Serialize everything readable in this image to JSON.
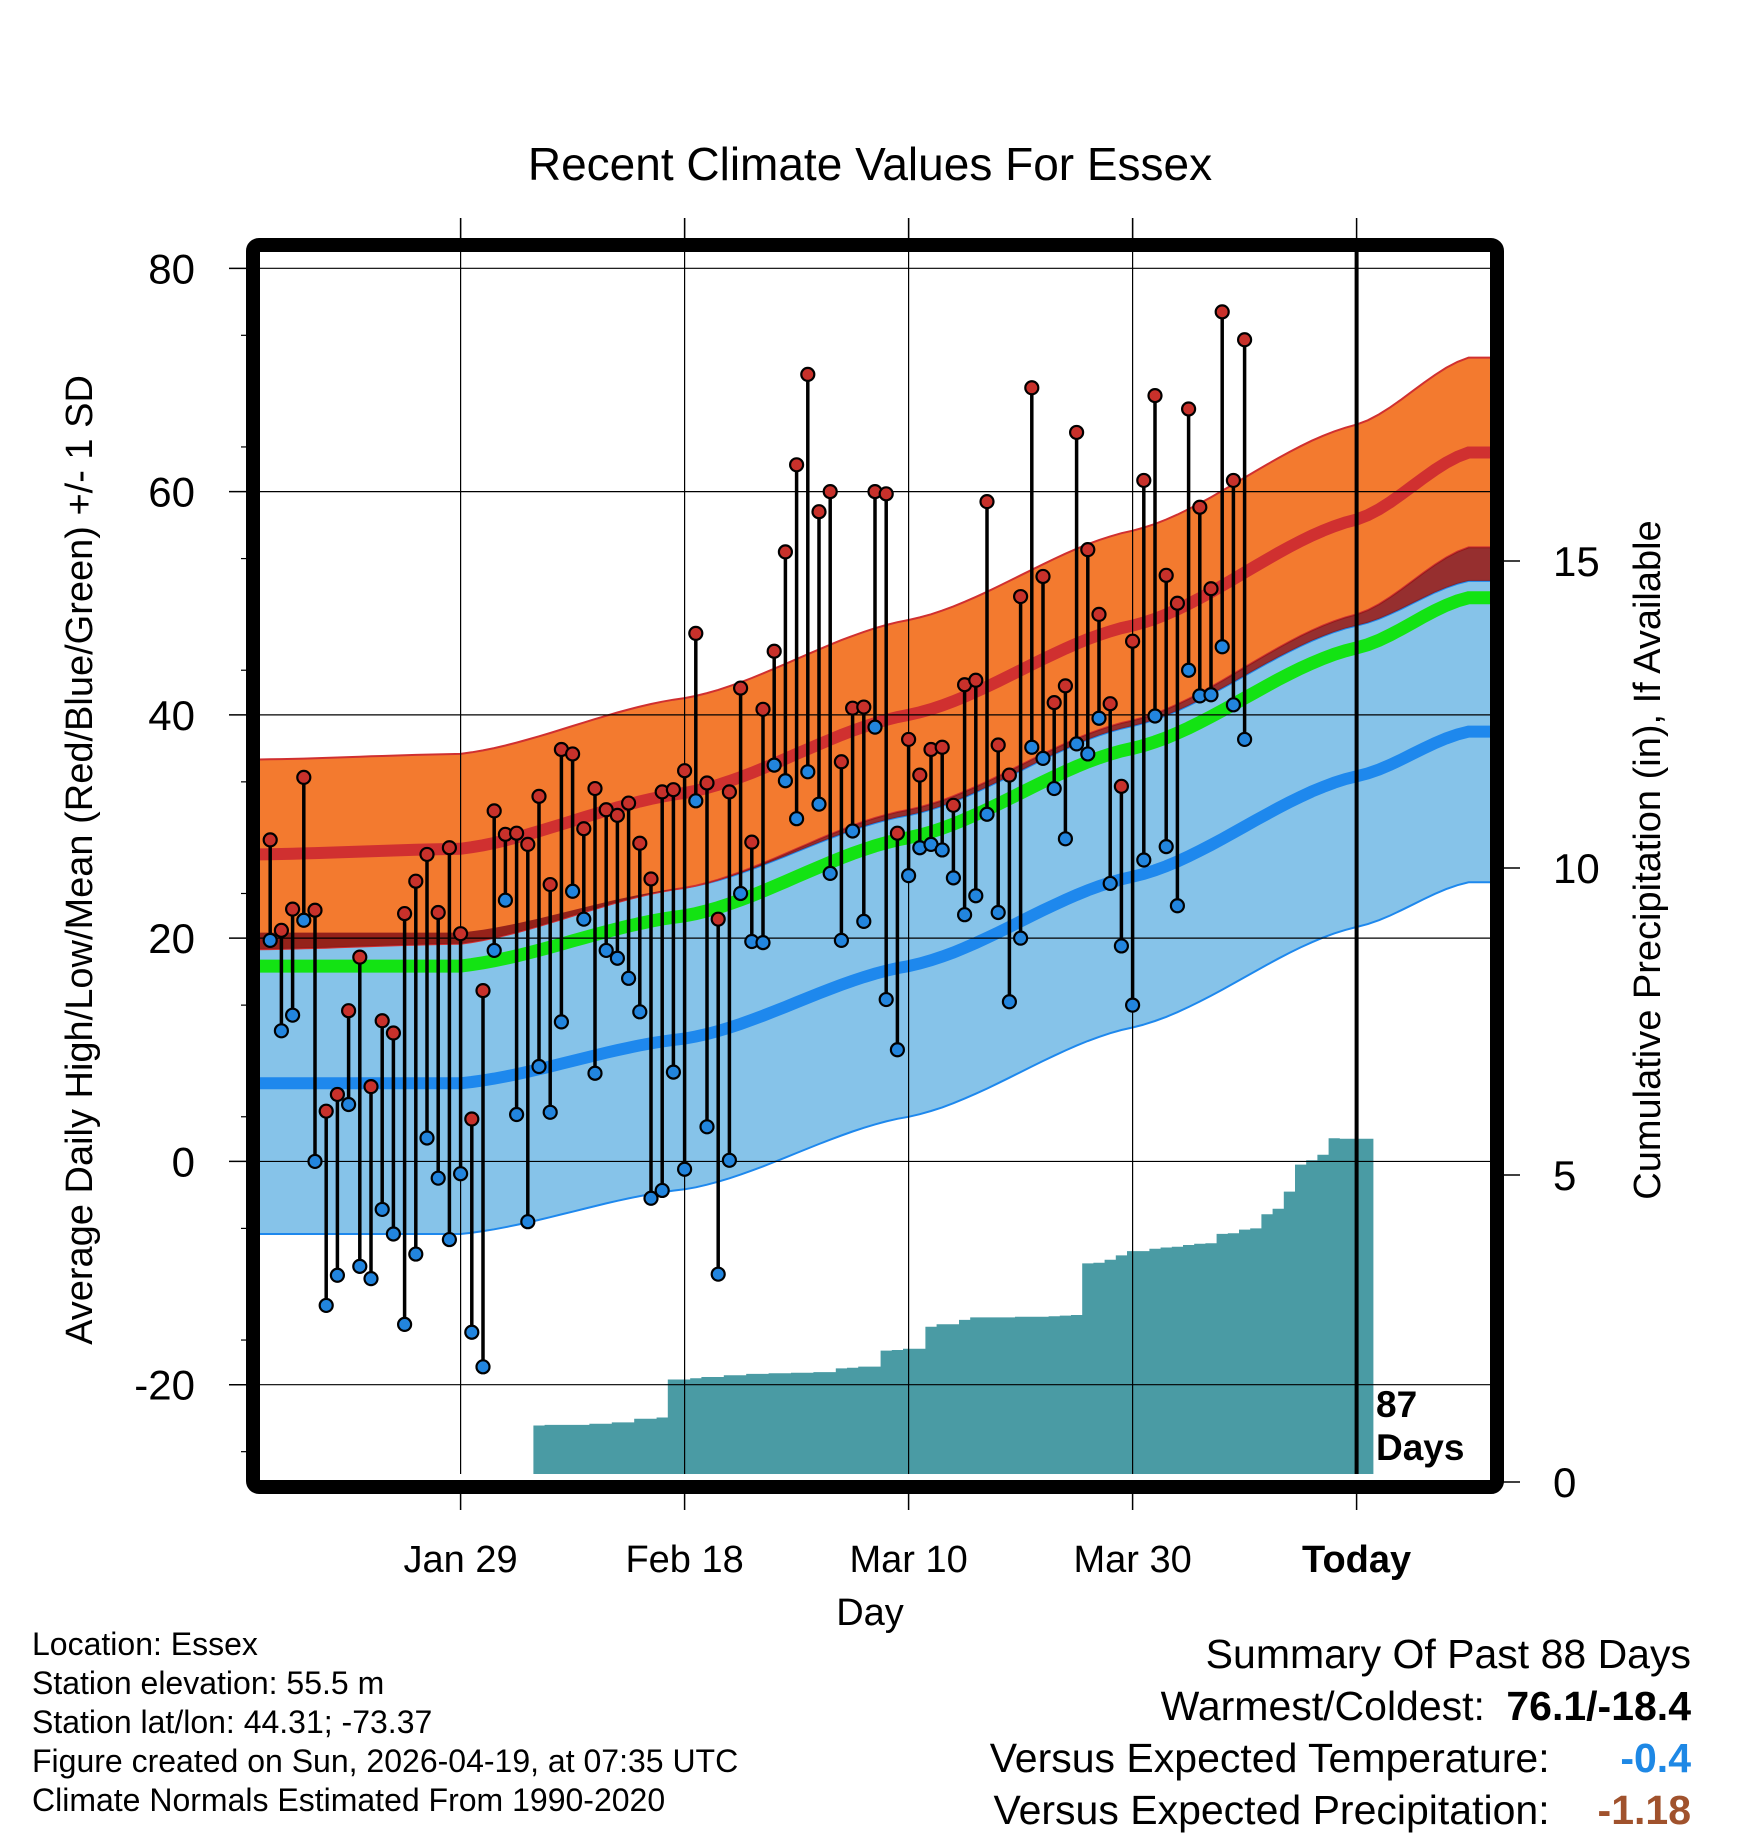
{
  "chart_data": {
    "type": "line",
    "title": "Recent Climate Values For Essex",
    "xlabel": "Day",
    "ylabel": "Average Daily High/Low/Mean (Red/Blue/Green) +/- 1 SD",
    "y2label": "Cumulative Precipitation (in), If Available",
    "x_range_days": [
      -98,
      12
    ],
    "ylim": [
      -28,
      82
    ],
    "y2lim": [
      0,
      20
    ],
    "yticks": [
      -20,
      0,
      20,
      40,
      60,
      80
    ],
    "y2ticks": [
      0,
      5,
      10,
      15
    ],
    "xticks": [
      {
        "day": -80,
        "label": "Jan 29"
      },
      {
        "day": -60,
        "label": "Feb 18"
      },
      {
        "day": -40,
        "label": "Mar 10"
      },
      {
        "day": -20,
        "label": "Mar 30"
      },
      {
        "day": 0,
        "label": "Today"
      }
    ],
    "today_annotation": [
      "87",
      "Days"
    ],
    "normal_high": [
      {
        "d": -98,
        "v": 27.5
      },
      {
        "d": -80,
        "v": 28
      },
      {
        "d": -60,
        "v": 33
      },
      {
        "d": -40,
        "v": 40
      },
      {
        "d": -20,
        "v": 48
      },
      {
        "d": 0,
        "v": 57.5
      },
      {
        "d": 10,
        "v": 63.5
      }
    ],
    "normal_high_sd": 8.5,
    "normal_low": [
      {
        "d": -98,
        "v": 7
      },
      {
        "d": -80,
        "v": 7
      },
      {
        "d": -60,
        "v": 11
      },
      {
        "d": -40,
        "v": 17.5
      },
      {
        "d": -20,
        "v": 25.5
      },
      {
        "d": 0,
        "v": 34.5
      },
      {
        "d": 10,
        "v": 38.5
      }
    ],
    "normal_low_sd": 13.5,
    "normal_mean": [
      {
        "d": -98,
        "v": 17.5
      },
      {
        "d": -80,
        "v": 17.5
      },
      {
        "d": -60,
        "v": 22
      },
      {
        "d": -40,
        "v": 29
      },
      {
        "d": -20,
        "v": 37
      },
      {
        "d": 0,
        "v": 46
      },
      {
        "d": 10,
        "v": 50.5
      }
    ],
    "daily_highs": [
      28.8,
      20.7,
      22.6,
      34.4,
      22.5,
      4.5,
      6.0,
      13.5,
      18.3,
      6.7,
      12.6,
      11.5,
      22.2,
      25.1,
      27.5,
      22.3,
      28.1,
      20.4,
      3.8,
      15.3,
      31.4,
      29.3,
      29.4,
      28.4,
      32.7,
      24.8,
      36.9,
      36.5,
      29.8,
      33.4,
      31.5,
      31.0,
      32.1,
      28.5,
      25.3,
      33.1,
      33.3,
      35.0,
      47.3,
      33.9,
      21.7,
      33.1,
      42.4,
      28.6,
      40.5,
      45.7,
      54.6,
      62.4,
      70.5,
      58.2,
      60.0,
      35.8,
      40.6,
      40.7,
      60.0,
      59.8,
      29.4,
      37.8,
      34.6,
      36.9,
      37.1,
      31.9,
      42.7,
      43.1,
      59.1,
      37.3,
      34.6,
      50.6,
      69.3,
      52.4,
      41.1,
      42.6,
      65.3,
      54.8,
      49.0,
      41.0,
      33.6,
      46.6,
      61.0,
      68.6,
      52.5,
      50.0,
      67.4,
      58.6,
      51.3,
      76.1,
      61.0,
      73.6
    ],
    "daily_lows": [
      19.8,
      11.7,
      13.1,
      21.6,
      0.0,
      -12.9,
      -10.2,
      5.1,
      -9.4,
      -10.5,
      -4.3,
      -6.5,
      -14.6,
      -8.3,
      2.1,
      -1.5,
      -7.0,
      -1.1,
      -15.3,
      -18.4,
      18.9,
      23.4,
      4.2,
      -5.4,
      8.5,
      4.4,
      12.5,
      24.2,
      21.7,
      7.9,
      18.9,
      18.2,
      16.4,
      13.4,
      -3.3,
      -2.6,
      8.0,
      -0.7,
      32.3,
      3.1,
      -10.1,
      0.1,
      24.0,
      19.7,
      19.6,
      35.5,
      34.1,
      30.7,
      34.9,
      32.0,
      25.8,
      19.8,
      29.6,
      21.5,
      38.9,
      14.5,
      10.0,
      25.6,
      28.1,
      28.4,
      27.9,
      25.4,
      22.1,
      23.8,
      31.1,
      22.3,
      14.3,
      20.0,
      37.1,
      36.1,
      33.4,
      28.9,
      37.4,
      36.5,
      39.7,
      24.9,
      19.3,
      14.0,
      27.0,
      39.9,
      28.2,
      22.9,
      44.0,
      41.7,
      41.8,
      46.1,
      40.9,
      37.8
    ],
    "cumulative_precip": [
      0,
      0,
      0,
      0,
      0,
      0,
      0.02,
      0.02,
      0.02,
      0.02,
      0.02,
      0.02,
      0.02,
      0.02,
      0.02,
      0.02,
      0.02,
      0.02,
      0.02,
      0.05,
      0.05,
      0.08,
      0.08,
      0.08,
      0.92,
      0.93,
      0.93,
      0.93,
      0.93,
      0.95,
      0.95,
      0.97,
      0.97,
      1.03,
      1.03,
      1.05,
      1.67,
      1.67,
      1.69,
      1.71,
      1.71,
      1.74,
      1.74,
      1.76,
      1.76,
      1.77,
      1.77,
      1.78,
      1.78,
      1.79,
      1.79,
      1.85,
      1.86,
      1.88,
      1.88,
      2.14,
      2.15,
      2.17,
      2.17,
      2.53,
      2.57,
      2.57,
      2.64,
      2.68,
      2.68,
      2.68,
      2.68,
      2.69,
      2.69,
      2.69,
      2.7,
      2.71,
      2.72,
      3.56,
      3.57,
      3.62,
      3.69,
      3.76,
      3.76,
      3.8,
      3.82,
      3.83,
      3.86,
      3.88,
      3.89,
      4.04,
      4.05,
      4.11,
      4.13,
      4.36,
      4.45,
      4.73,
      5.17,
      5.24,
      5.33,
      5.6,
      5.59,
      5.59,
      5.59
    ],
    "colors": {
      "high_band": "#f37a2f",
      "high_line": "#d03030",
      "low_band": "#86c3e9",
      "low_line": "#1e88ed",
      "mean_line": "#13e313",
      "overlap": "#8b1818",
      "precip": "#4a9ba4",
      "high_marker": "#c8312b",
      "low_marker": "#2285de"
    }
  },
  "info": {
    "location": "Location: Essex",
    "elevation": "Station elevation: 55.5 m",
    "latlon": "Station lat/lon: 44.31; -73.37",
    "created": "Figure created on Sun, 2026-04-19, at 07:35 UTC",
    "normals": "Climate Normals Estimated From 1990-2020"
  },
  "summary": {
    "title": "Summary Of Past 88 Days",
    "warmest_label": "Warmest/Coldest:",
    "warmest_value": "76.1/-18.4",
    "temp_label": "Versus Expected Temperature:",
    "temp_value": "-0.4",
    "precip_label": "Versus Expected Precipitation:",
    "precip_value": "-1.18"
  }
}
